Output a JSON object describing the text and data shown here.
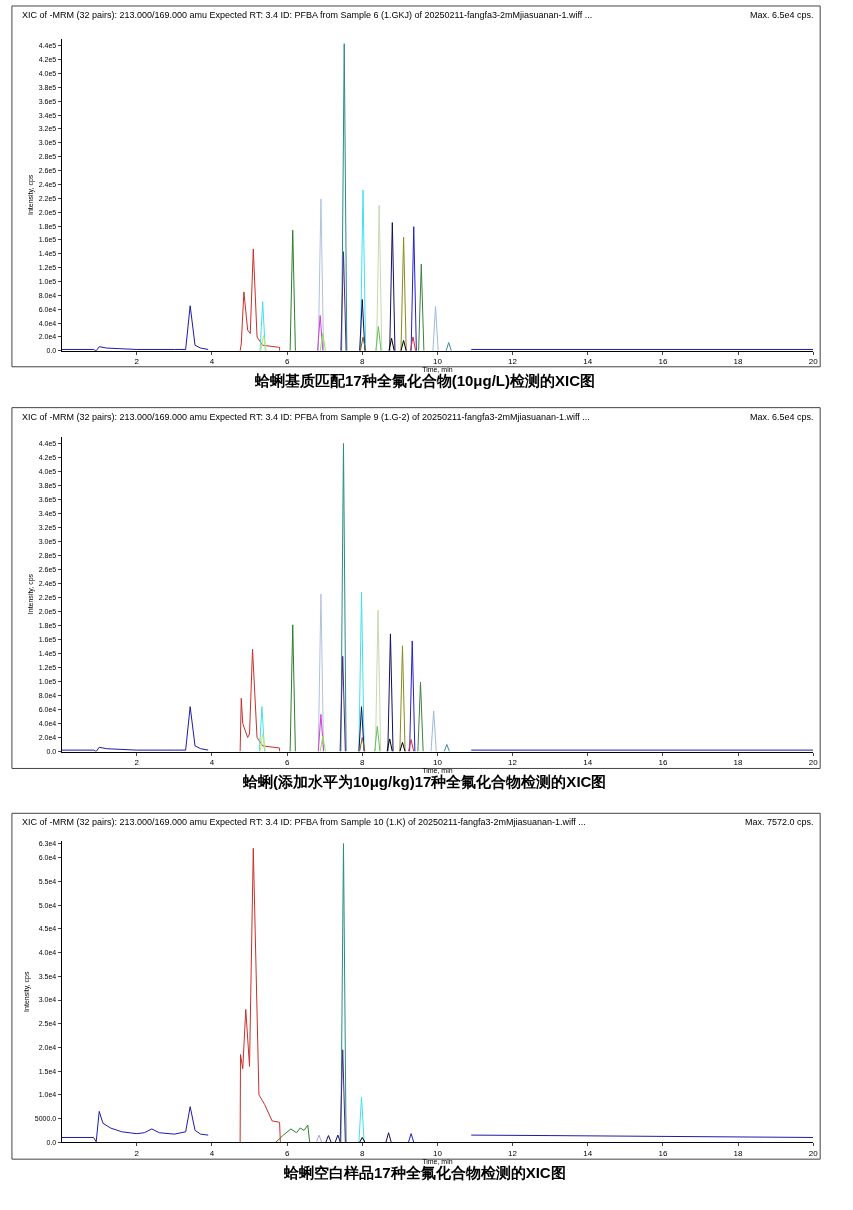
{
  "chart_data": [
    {
      "type": "line",
      "title": "蛤蜊基质匹配17种全氟化合物(10μg/L)检测的XIC图",
      "xlabel": "Time, min",
      "ylabel": "Intensity, cps",
      "annotations": [
        "XIC of -MRM (32 pairs): 213.000/169.000 amu Expected RT: 3.4 ID: PFBA from Sample 6 (1.GKJ) of 20250211-fangfa3-2mMjiasuanan-1.wiff ...",
        "Max. 6.5e4 cps."
      ],
      "xlim": [
        0,
        20
      ],
      "xticks": [
        2,
        4,
        6,
        8,
        10,
        12,
        14,
        16,
        18,
        20
      ],
      "ylim": [
        0,
        450000
      ],
      "yticks": [
        {
          "value": 0,
          "label": "0.0"
        },
        {
          "value": 20000,
          "label": "2.0e4"
        },
        {
          "value": 40000,
          "label": "4.0e4"
        },
        {
          "value": 60000,
          "label": "6.0e4"
        },
        {
          "value": 80000,
          "label": "8.0e4"
        },
        {
          "value": 100000,
          "label": "1.0e5"
        },
        {
          "value": 120000,
          "label": "1.2e5"
        },
        {
          "value": 140000,
          "label": "1.4e5"
        },
        {
          "value": 160000,
          "label": "1.6e5"
        },
        {
          "value": 180000,
          "label": "1.8e5"
        },
        {
          "value": 200000,
          "label": "2.0e5"
        },
        {
          "value": 220000,
          "label": "2.2e5"
        },
        {
          "value": 240000,
          "label": "2.4e5"
        },
        {
          "value": 260000,
          "label": "2.6e5"
        },
        {
          "value": 280000,
          "label": "2.8e5"
        },
        {
          "value": 300000,
          "label": "3.0e5"
        },
        {
          "value": 320000,
          "label": "3.2e5"
        },
        {
          "value": 340000,
          "label": "3.4e5"
        },
        {
          "value": 360000,
          "label": "3.6e5"
        },
        {
          "value": 380000,
          "label": "3.8e5"
        },
        {
          "value": 400000,
          "label": "4.0e5"
        },
        {
          "value": 420000,
          "label": "4.2e5"
        },
        {
          "value": 440000,
          "label": "4.4e5"
        }
      ],
      "marker": "none",
      "line_style": "solid",
      "series": [
        {
          "color": "#1c1ca8",
          "x": [
            0,
            0.85,
            0.92,
            1.0,
            1.2,
            2.0,
            3.0,
            3.3,
            3.42,
            3.55,
            3.7,
            3.9,
            6.0,
            10.9,
            20
          ],
          "values": [
            2000,
            2000,
            0,
            6000,
            4000,
            2000,
            2000,
            2000,
            65000,
            8000,
            4000,
            2000,
            null,
            2000,
            2000
          ]
        },
        {
          "color": "#c8302a",
          "x": [
            4.75,
            4.78,
            4.85,
            4.95,
            5.02,
            5.1,
            5.2,
            5.35,
            5.8,
            5.8
          ],
          "values": [
            0,
            10000,
            85000,
            30000,
            25000,
            147000,
            20000,
            8000,
            5000,
            0
          ]
        },
        {
          "color": "#40e0f0",
          "x": [
            5.28,
            5.35,
            5.42
          ],
          "values": [
            0,
            71000,
            0
          ]
        },
        {
          "color": "#c8e860",
          "x": [
            5.3,
            5.37,
            5.44
          ],
          "values": [
            0,
            22000,
            0
          ]
        },
        {
          "color": "#2e7d2e",
          "x": [
            6.08,
            6.15,
            6.22
          ],
          "values": [
            0,
            174000,
            0
          ]
        },
        {
          "color": "#b0c0e0",
          "x": [
            6.83,
            6.9,
            6.97
          ],
          "values": [
            0,
            219000,
            0
          ]
        },
        {
          "color": "#d040d0",
          "x": [
            6.81,
            6.88,
            6.95
          ],
          "values": [
            0,
            51000,
            0
          ]
        },
        {
          "color": "#90e060",
          "x": [
            6.88,
            6.95,
            7.02
          ],
          "values": [
            0,
            25000,
            0
          ]
        },
        {
          "color": "#2a8a8a",
          "x": [
            7.45,
            7.52,
            7.59
          ],
          "values": [
            0,
            443000,
            0
          ]
        },
        {
          "color": "#4a2a80",
          "x": [
            7.43,
            7.5,
            7.57
          ],
          "values": [
            0,
            143000,
            0
          ]
        },
        {
          "color": "#40e0f0",
          "x": [
            7.95,
            8.02,
            8.09
          ],
          "values": [
            0,
            232000,
            0
          ]
        },
        {
          "color": "#101060",
          "x": [
            7.93,
            8.0,
            8.07
          ],
          "values": [
            0,
            74000,
            0
          ]
        },
        {
          "color": "#8b5a2b",
          "x": [
            7.95,
            8.02,
            8.09
          ],
          "values": [
            0,
            20000,
            0
          ]
        },
        {
          "color": "#c8d8b0",
          "x": [
            8.38,
            8.45,
            8.52
          ],
          "values": [
            0,
            210000,
            0
          ]
        },
        {
          "color": "#60c060",
          "x": [
            8.36,
            8.43,
            8.5
          ],
          "values": [
            0,
            35000,
            0
          ]
        },
        {
          "color": "#101060",
          "x": [
            8.73,
            8.8,
            8.87
          ],
          "values": [
            0,
            185000,
            0
          ]
        },
        {
          "color": "#000000",
          "x": [
            8.71,
            8.78,
            8.85
          ],
          "values": [
            0,
            18000,
            0
          ]
        },
        {
          "color": "#8a8a20",
          "x": [
            9.03,
            9.1,
            9.17
          ],
          "values": [
            0,
            164000,
            0
          ]
        },
        {
          "color": "#000000",
          "x": [
            9.03,
            9.1,
            9.17
          ],
          "values": [
            0,
            15000,
            0
          ]
        },
        {
          "color": "#2020d0",
          "x": [
            9.3,
            9.37,
            9.44
          ],
          "values": [
            0,
            179000,
            0
          ]
        },
        {
          "color": "#d03040",
          "x": [
            9.28,
            9.35,
            9.42
          ],
          "values": [
            0,
            20000,
            0
          ]
        },
        {
          "color": "#408040",
          "x": [
            9.5,
            9.57,
            9.64
          ],
          "values": [
            0,
            125000,
            0
          ]
        },
        {
          "color": "#a0b8e0",
          "x": [
            9.88,
            9.95,
            10.02
          ],
          "values": [
            0,
            64000,
            0
          ]
        },
        {
          "color": "#3a8aa0",
          "x": [
            10.23,
            10.3,
            10.37
          ],
          "values": [
            0,
            12000,
            0
          ]
        }
      ]
    },
    {
      "type": "line",
      "title": "蛤蜊(添加水平为10μg/kg)17种全氟化合物检测的XIC图",
      "xlabel": "Time, min",
      "ylabel": "Intensity, cps",
      "annotations": [
        "XIC of -MRM (32 pairs): 213.000/169.000 amu Expected RT: 3.4 ID: PFBA from Sample 9 (1.G-2) of 20250211-fangfa3-2mMjiasuanan-1.wiff ...",
        "Max. 6.5e4 cps."
      ],
      "xlim": [
        0,
        20
      ],
      "xticks": [
        2,
        4,
        6,
        8,
        10,
        12,
        14,
        16,
        18,
        20
      ],
      "ylim": [
        0,
        450000
      ],
      "yticks": [
        {
          "value": 0,
          "label": "0.0"
        },
        {
          "value": 20000,
          "label": "2.0e4"
        },
        {
          "value": 40000,
          "label": "4.0e4"
        },
        {
          "value": 60000,
          "label": "6.0e4"
        },
        {
          "value": 80000,
          "label": "8.0e4"
        },
        {
          "value": 100000,
          "label": "1.0e5"
        },
        {
          "value": 120000,
          "label": "1.2e5"
        },
        {
          "value": 140000,
          "label": "1.4e5"
        },
        {
          "value": 160000,
          "label": "1.6e5"
        },
        {
          "value": 180000,
          "label": "1.8e5"
        },
        {
          "value": 200000,
          "label": "2.0e5"
        },
        {
          "value": 220000,
          "label": "2.2e5"
        },
        {
          "value": 240000,
          "label": "2.4e5"
        },
        {
          "value": 260000,
          "label": "2.6e5"
        },
        {
          "value": 280000,
          "label": "2.8e5"
        },
        {
          "value": 300000,
          "label": "3.0e5"
        },
        {
          "value": 320000,
          "label": "3.2e5"
        },
        {
          "value": 340000,
          "label": "3.4e5"
        },
        {
          "value": 360000,
          "label": "3.6e5"
        },
        {
          "value": 380000,
          "label": "3.8e5"
        },
        {
          "value": 400000,
          "label": "4.0e5"
        },
        {
          "value": 420000,
          "label": "4.2e5"
        },
        {
          "value": 440000,
          "label": "4.4e5"
        }
      ],
      "marker": "none",
      "line_style": "solid",
      "series": [
        {
          "color": "#1c1ca8",
          "x": [
            0,
            0.85,
            0.92,
            1.0,
            1.2,
            2.0,
            3.0,
            3.3,
            3.42,
            3.55,
            3.7,
            3.9,
            6.0,
            10.9,
            20
          ],
          "values": [
            2000,
            2000,
            0,
            6000,
            4000,
            2000,
            2000,
            2000,
            64000,
            8000,
            4000,
            2000,
            null,
            2000,
            2000
          ]
        },
        {
          "color": "#c8302a",
          "x": [
            4.75,
            4.78,
            4.82,
            4.95,
            5.0,
            5.08,
            5.2,
            5.35,
            5.8,
            5.8
          ],
          "values": [
            0,
            76000,
            40000,
            20000,
            25000,
            146000,
            20000,
            8000,
            5000,
            0
          ]
        },
        {
          "color": "#40e0f0",
          "x": [
            5.26,
            5.33,
            5.4
          ],
          "values": [
            0,
            64000,
            0
          ]
        },
        {
          "color": "#c8e860",
          "x": [
            5.28,
            5.35,
            5.42
          ],
          "values": [
            0,
            25000,
            0
          ]
        },
        {
          "color": "#2e7d2e",
          "x": [
            6.08,
            6.15,
            6.22
          ],
          "values": [
            0,
            181000,
            0
          ]
        },
        {
          "color": "#b0c0e0",
          "x": [
            6.83,
            6.9,
            6.97
          ],
          "values": [
            0,
            225000,
            0
          ]
        },
        {
          "color": "#d040d0",
          "x": [
            6.83,
            6.9,
            6.97
          ],
          "values": [
            0,
            53000,
            0
          ]
        },
        {
          "color": "#90e060",
          "x": [
            6.88,
            6.95,
            7.02
          ],
          "values": [
            0,
            22000,
            0
          ]
        },
        {
          "color": "#2a8a8a",
          "x": [
            7.43,
            7.5,
            7.57
          ],
          "values": [
            0,
            440000,
            0
          ]
        },
        {
          "color": "#4a2a80",
          "x": [
            7.41,
            7.48,
            7.55
          ],
          "values": [
            0,
            136000,
            0
          ]
        },
        {
          "color": "#40e0f0",
          "x": [
            7.91,
            7.98,
            8.05
          ],
          "values": [
            0,
            228000,
            0
          ]
        },
        {
          "color": "#101060",
          "x": [
            7.91,
            7.98,
            8.05
          ],
          "values": [
            0,
            64000,
            0
          ]
        },
        {
          "color": "#8b5a2b",
          "x": [
            7.93,
            8.0,
            8.07
          ],
          "values": [
            0,
            20000,
            0
          ]
        },
        {
          "color": "#c8d8b0",
          "x": [
            8.35,
            8.42,
            8.49
          ],
          "values": [
            0,
            202000,
            0
          ]
        },
        {
          "color": "#60c060",
          "x": [
            8.33,
            8.4,
            8.47
          ],
          "values": [
            0,
            36000,
            0
          ]
        },
        {
          "color": "#101060",
          "x": [
            8.68,
            8.75,
            8.82
          ],
          "values": [
            0,
            168000,
            0
          ]
        },
        {
          "color": "#000000",
          "x": [
            8.66,
            8.73,
            8.8
          ],
          "values": [
            0,
            18000,
            0
          ]
        },
        {
          "color": "#8a8a20",
          "x": [
            9.0,
            9.07,
            9.14
          ],
          "values": [
            0,
            151000,
            0
          ]
        },
        {
          "color": "#000000",
          "x": [
            9.0,
            9.07,
            9.14
          ],
          "values": [
            0,
            13000,
            0
          ]
        },
        {
          "color": "#2020d0",
          "x": [
            9.26,
            9.33,
            9.4
          ],
          "values": [
            0,
            158000,
            0
          ]
        },
        {
          "color": "#d03040",
          "x": [
            9.23,
            9.3,
            9.37
          ],
          "values": [
            0,
            17000,
            0
          ]
        },
        {
          "color": "#408040",
          "x": [
            9.48,
            9.55,
            9.62
          ],
          "values": [
            0,
            99000,
            0
          ]
        },
        {
          "color": "#a0b8e0",
          "x": [
            9.83,
            9.9,
            9.97
          ],
          "values": [
            0,
            58000,
            0
          ]
        },
        {
          "color": "#3a8aa0",
          "x": [
            10.18,
            10.25,
            10.32
          ],
          "values": [
            0,
            10000,
            0
          ]
        }
      ]
    },
    {
      "type": "line",
      "title": "蛤蜊空白样品17种全氟化合物检测的XIC图",
      "xlabel": "Time, min",
      "ylabel": "Intensity, cps",
      "annotations": [
        "XIC of -MRM (32 pairs): 213.000/169.000 amu Expected RT: 3.4 ID: PFBA from Sample 10 (1.K) of 20250211-fangfa3-2mMjiasuanan-1.wiff ...",
        "Max. 7572.0 cps."
      ],
      "xlim": [
        0,
        20
      ],
      "xticks": [
        2,
        4,
        6,
        8,
        10,
        12,
        14,
        16,
        18,
        20
      ],
      "ylim": [
        0,
        63500
      ],
      "yticks": [
        {
          "value": 0,
          "label": "0.0"
        },
        {
          "value": 5000,
          "label": "5000.0"
        },
        {
          "value": 10000,
          "label": "1.0e4"
        },
        {
          "value": 15000,
          "label": "1.5e4"
        },
        {
          "value": 20000,
          "label": "2.0e4"
        },
        {
          "value": 25000,
          "label": "2.5e4"
        },
        {
          "value": 30000,
          "label": "3.0e4"
        },
        {
          "value": 35000,
          "label": "3.5e4"
        },
        {
          "value": 40000,
          "label": "4.0e4"
        },
        {
          "value": 45000,
          "label": "4.5e4"
        },
        {
          "value": 50000,
          "label": "5.0e4"
        },
        {
          "value": 55000,
          "label": "5.5e4"
        },
        {
          "value": 60000,
          "label": "6.0e4"
        },
        {
          "value": 63000,
          "label": "6.3e4"
        }
      ],
      "marker": "none",
      "line_style": "solid",
      "series": [
        {
          "color": "#1c1ca8",
          "x": [
            0,
            0.85,
            0.92,
            1.0,
            1.1,
            1.3,
            1.6,
            2.0,
            2.2,
            2.4,
            2.6,
            3.0,
            3.3,
            3.42,
            3.55,
            3.7,
            3.9,
            6.0,
            10.9,
            13.0,
            20
          ],
          "values": [
            1000,
            1000,
            100,
            6500,
            4000,
            3000,
            2200,
            1800,
            2000,
            2800,
            2000,
            1700,
            2200,
            7500,
            2500,
            1700,
            1500,
            null,
            1500,
            1400,
            1000
          ]
        },
        {
          "color": "#c8302a",
          "x": [
            4.75,
            4.76,
            4.82,
            4.9,
            5.0,
            5.1,
            5.25,
            5.4,
            5.6,
            5.8,
            5.82
          ],
          "values": [
            0,
            18500,
            15500,
            28000,
            16000,
            62000,
            10000,
            8000,
            4500,
            4200,
            0
          ]
        },
        {
          "color": "#2e7d2e",
          "x": [
            5.7,
            5.9,
            6.1,
            6.25,
            6.35,
            6.45,
            6.55,
            6.6
          ],
          "values": [
            0,
            1500,
            2800,
            2000,
            3000,
            2500,
            3600,
            0
          ]
        },
        {
          "color": "#b0a0e0",
          "x": [
            6.78,
            6.85,
            6.92
          ],
          "values": [
            0,
            1500,
            0
          ]
        },
        {
          "color": "#101060",
          "x": [
            7.03,
            7.1,
            7.17
          ],
          "values": [
            0,
            1400,
            0
          ]
        },
        {
          "color": "#101060",
          "x": [
            7.28,
            7.35,
            7.42
          ],
          "values": [
            0,
            1500,
            0
          ]
        },
        {
          "color": "#2a8a8a",
          "x": [
            7.43,
            7.5,
            7.57
          ],
          "values": [
            0,
            63000,
            0
          ]
        },
        {
          "color": "#4a2a80",
          "x": [
            7.41,
            7.48,
            7.55
          ],
          "values": [
            0,
            19500,
            0
          ]
        },
        {
          "color": "#40e0f0",
          "x": [
            7.91,
            7.98,
            8.05
          ],
          "values": [
            0,
            9500,
            0
          ]
        },
        {
          "color": "#000000",
          "x": [
            7.93,
            8.0,
            8.07
          ],
          "values": [
            0,
            1000,
            0
          ]
        },
        {
          "color": "#101060",
          "x": [
            8.63,
            8.7,
            8.77
          ],
          "values": [
            0,
            2000,
            0
          ]
        },
        {
          "color": "#2020d0",
          "x": [
            9.23,
            9.3,
            9.37
          ],
          "values": [
            0,
            1800,
            0
          ]
        }
      ]
    }
  ]
}
